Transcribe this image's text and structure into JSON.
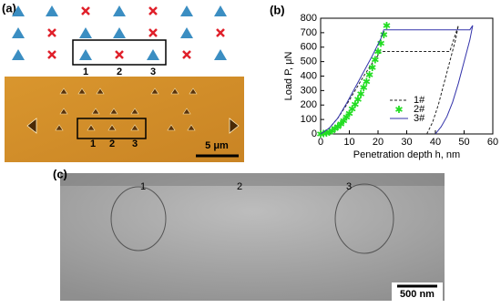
{
  "panel_a": {
    "label": "(a)",
    "schematic_labels": [
      "1",
      "2",
      "3"
    ],
    "image_labels": [
      "1",
      "2",
      "3"
    ],
    "scale_bar": "5 μm"
  },
  "chart_data": {
    "type": "line",
    "label": "(b)",
    "xlabel": "Penetration depth h, nm",
    "ylabel": "Load P, μN",
    "xlim": [
      0,
      60
    ],
    "xticks": [
      0,
      10,
      20,
      30,
      40,
      50,
      60
    ],
    "ylim": [
      0,
      800
    ],
    "yticks": [
      0,
      100,
      200,
      300,
      400,
      500,
      600,
      700,
      800
    ],
    "series": [
      {
        "name": "1#",
        "color": "#222222",
        "style": "dashed",
        "x": [
          0,
          3,
          6,
          9,
          12,
          15,
          18,
          21,
          45,
          48,
          47,
          45,
          43,
          41,
          39,
          37
        ],
        "values": [
          0,
          40,
          110,
          200,
          300,
          400,
          490,
          570,
          570,
          750,
          650,
          500,
          350,
          200,
          80,
          0
        ]
      },
      {
        "name": "2#",
        "color": "#22dd22",
        "style": "markers",
        "x": [
          0,
          1,
          2,
          3,
          4,
          5,
          6,
          7,
          8,
          9,
          10,
          11,
          12,
          13,
          14,
          15,
          16,
          17,
          18,
          19,
          20,
          21,
          22,
          23
        ],
        "values": [
          0,
          1,
          6,
          13,
          23,
          36,
          51,
          70,
          91,
          115,
          142,
          172,
          204,
          240,
          278,
          320,
          363,
          410,
          460,
          513,
          568,
          626,
          687,
          750
        ]
      },
      {
        "name": "3#",
        "color": "#3333aa",
        "style": "solid",
        "x": [
          0,
          3,
          6,
          9,
          12,
          15,
          18,
          21,
          22,
          52,
          53,
          52,
          50,
          48,
          46,
          44,
          42,
          40
        ],
        "values": [
          0,
          40,
          110,
          210,
          320,
          430,
          540,
          660,
          720,
          720,
          750,
          650,
          500,
          350,
          220,
          120,
          50,
          0
        ]
      }
    ]
  },
  "panel_c": {
    "label": "(c)",
    "image_labels": [
      "1",
      "2",
      "3"
    ],
    "scale_bar": "500 nm"
  }
}
